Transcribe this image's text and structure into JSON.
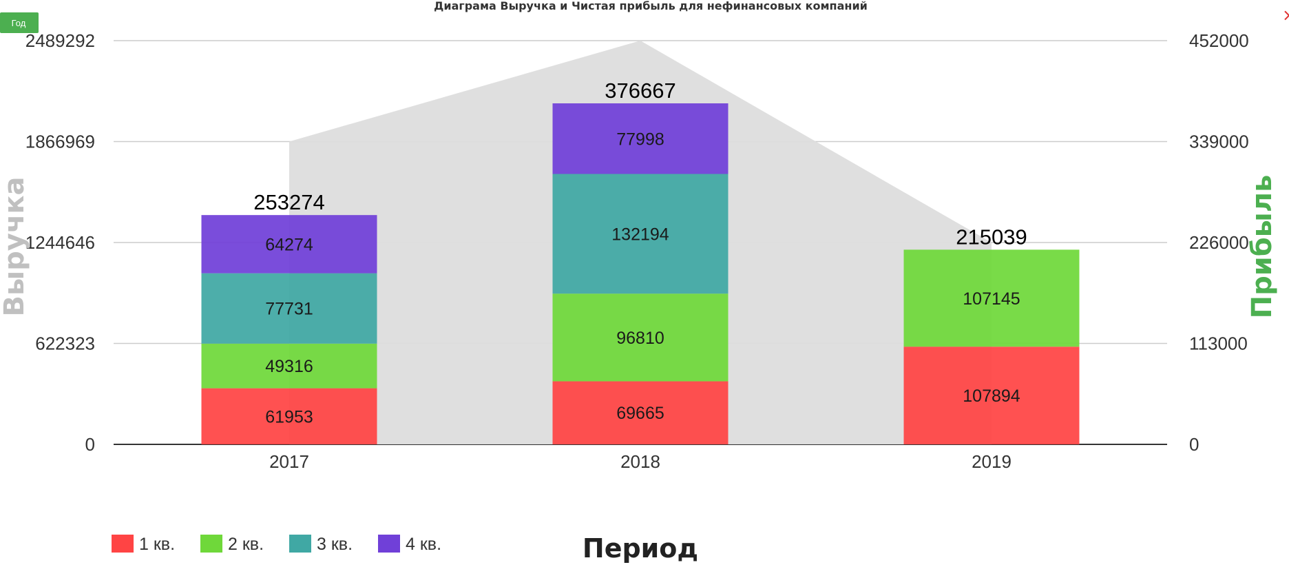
{
  "ui": {
    "period_button_label": "Год",
    "close_label": "×"
  },
  "colors": {
    "q1": "#ff4444",
    "q2": "#6fd83a",
    "q3": "#40a8a4",
    "q4": "#7040d8",
    "profit_area": "#dddddd",
    "button": "#4caf50",
    "right_axis": "#4caf50",
    "left_axis": "#c0c0c0"
  },
  "chart_data": {
    "type": "bar",
    "stacked": true,
    "title": "Диаграма Выручка и Чистая прибыль для нефинансовых компаний",
    "xlabel": "Период",
    "ylabel": "Выручка",
    "y2label": "Прибыль",
    "categories": [
      "2017",
      "2018",
      "2019"
    ],
    "series": [
      {
        "name": "1 кв.",
        "values": [
          61953,
          69665,
          107894
        ]
      },
      {
        "name": "2 кв.",
        "values": [
          49316,
          96810,
          107145
        ]
      },
      {
        "name": "3 кв.",
        "values": [
          77731,
          132194,
          null
        ]
      },
      {
        "name": "4 кв.",
        "values": [
          64274,
          77998,
          null
        ]
      }
    ],
    "totals": [
      253274,
      376667,
      215039
    ],
    "profit_area": {
      "values": [
        339000,
        452000,
        226000
      ]
    },
    "yticks_left": [
      "0",
      "622323",
      "1244646",
      "1866969",
      "2489292"
    ],
    "yticks_right": [
      "0",
      "113000",
      "226000",
      "339000",
      "452000"
    ],
    "ylim_right": [
      0,
      452000
    ],
    "grid": true,
    "legend_position": "bottom-left"
  }
}
